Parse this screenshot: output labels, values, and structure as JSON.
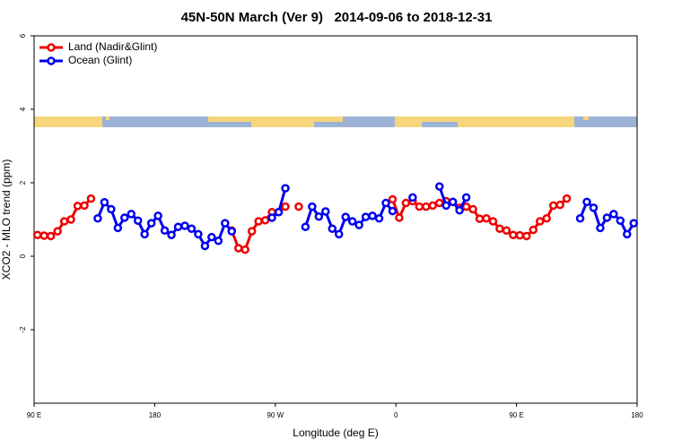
{
  "chart_data": {
    "type": "line",
    "title": "45N-50N March (Ver 9)   2014-09-06 to 2018-12-31",
    "x_label": "Longitude (deg E)",
    "y_label": "XCO2 - MLO trend (ppm)",
    "xlim": [
      90,
      540
    ],
    "xticks": [
      {
        "value": 90,
        "label": "90 E"
      },
      {
        "value": 180,
        "label": "180"
      },
      {
        "value": 270,
        "label": "90 W"
      },
      {
        "value": 360,
        "label": "0"
      },
      {
        "value": 450,
        "label": "90 E"
      },
      {
        "value": 540,
        "label": "180"
      }
    ],
    "ylim": [
      -4,
      6
    ],
    "yticks": [
      -2,
      0,
      2,
      4,
      6
    ],
    "legend": "top-left",
    "x": [
      92.5,
      97.5,
      102.5,
      107.5,
      112.5,
      117.5,
      122.5,
      127.5,
      132.5,
      137.5,
      142.5,
      147.5,
      152.5,
      157.5,
      162.5,
      167.5,
      172.5,
      177.5,
      182.5,
      187.5,
      192.5,
      197.5,
      202.5,
      207.5,
      212.5,
      217.5,
      222.5,
      227.5,
      232.5,
      237.5,
      242.5,
      247.5,
      252.5,
      257.5,
      262.5,
      267.5,
      272.5,
      277.5,
      282.5,
      287.5,
      292.5,
      297.5,
      302.5,
      307.5,
      312.5,
      317.5,
      322.5,
      327.5,
      332.5,
      337.5,
      342.5,
      347.5,
      352.5,
      357.5,
      362.5,
      367.5,
      372.5,
      377.5,
      382.5,
      387.5,
      392.5,
      397.5,
      402.5,
      407.5,
      412.5,
      417.5,
      422.5,
      427.5,
      432.5,
      437.5,
      442.5,
      447.5,
      452.5,
      457.5,
      462.5,
      467.5,
      472.5,
      477.5,
      482.5,
      487.5,
      492.5,
      497.5,
      502.5,
      507.5,
      512.5,
      517.5,
      522.5,
      527.5,
      532.5,
      537.5
    ],
    "series": [
      {
        "name": "Land (Nadir&Glint)",
        "color": "#ee0000",
        "values": [
          0.58,
          0.56,
          0.55,
          0.68,
          0.95,
          1.0,
          1.37,
          1.38,
          1.57,
          null,
          null,
          null,
          null,
          null,
          null,
          null,
          null,
          null,
          null,
          null,
          null,
          null,
          null,
          null,
          null,
          null,
          null,
          null,
          null,
          0.7,
          0.22,
          0.18,
          0.68,
          0.95,
          0.98,
          1.2,
          1.2,
          1.35,
          null,
          1.35,
          null,
          null,
          null,
          null,
          null,
          null,
          null,
          null,
          null,
          null,
          null,
          null,
          null,
          1.55,
          1.05,
          1.45,
          1.5,
          1.35,
          1.35,
          1.38,
          1.45,
          1.5,
          1.48,
          1.32,
          1.35,
          1.28,
          1.02,
          1.03,
          0.95,
          0.75,
          0.7,
          0.58,
          0.57,
          0.55,
          0.72,
          0.95,
          1.03,
          1.38,
          1.4,
          1.57,
          null,
          null,
          null,
          null,
          null,
          null,
          null,
          null,
          null,
          null
        ]
      },
      {
        "name": "Ocean (Glint)",
        "color": "#0000ee",
        "values": [
          null,
          null,
          null,
          null,
          null,
          null,
          null,
          null,
          null,
          1.03,
          1.47,
          1.28,
          0.77,
          1.05,
          1.15,
          0.97,
          0.6,
          0.9,
          1.1,
          0.7,
          0.58,
          0.8,
          0.83,
          0.75,
          0.6,
          0.28,
          0.52,
          0.42,
          0.9,
          0.68,
          null,
          null,
          null,
          null,
          null,
          1.05,
          1.2,
          1.85,
          null,
          null,
          0.8,
          1.35,
          1.08,
          1.22,
          0.75,
          0.6,
          1.07,
          0.95,
          0.85,
          1.07,
          1.1,
          1.03,
          1.45,
          1.23,
          null,
          null,
          1.6,
          null,
          null,
          null,
          1.9,
          1.38,
          1.48,
          1.25,
          1.6,
          null,
          null,
          null,
          null,
          null,
          null,
          null,
          null,
          null,
          null,
          null,
          null,
          null,
          null,
          null,
          null,
          1.03,
          1.48,
          1.32,
          0.77,
          1.05,
          1.15,
          0.97,
          0.6,
          0.9
        ]
      }
    ]
  }
}
